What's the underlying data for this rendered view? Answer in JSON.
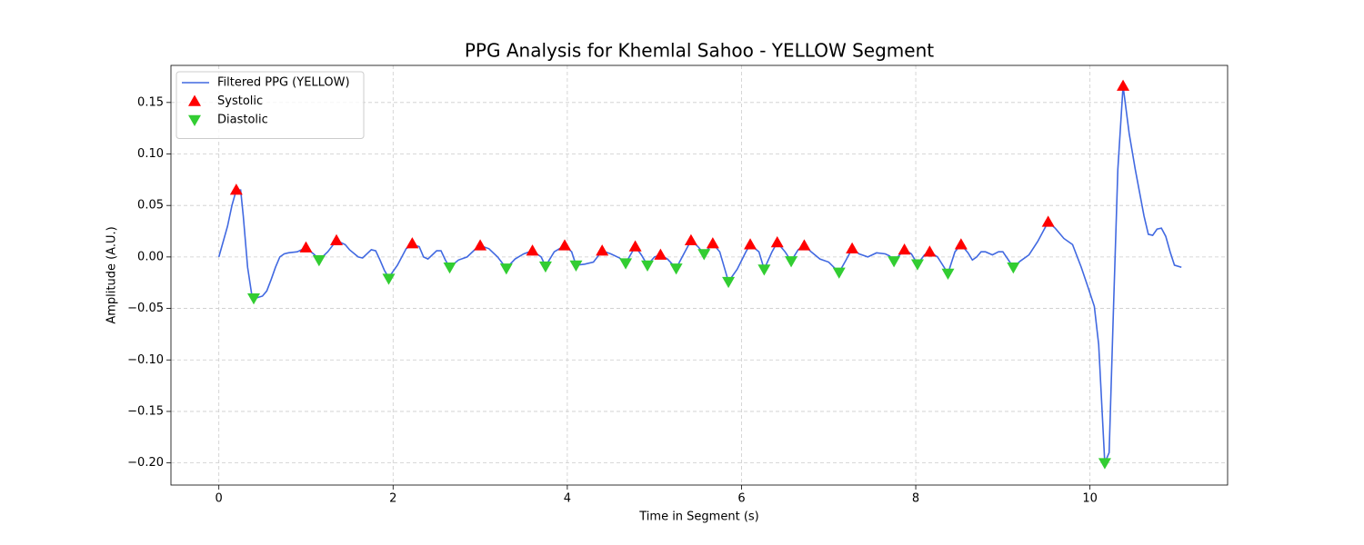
{
  "chart_data": {
    "type": "line",
    "title": "PPG Analysis for Khemlal Sahoo - YELLOW Segment",
    "x_label": "Time in Segment (s)",
    "y_label": "Amplitude (A.U.)",
    "xlim": [
      -0.55,
      11.58
    ],
    "ylim": [
      -0.2215,
      0.186
    ],
    "xticks": [
      0,
      2,
      4,
      6,
      8,
      10
    ],
    "yticks": [
      {
        "value": -0.2,
        "label": "−0.20"
      },
      {
        "value": -0.15,
        "label": "−0.15"
      },
      {
        "value": -0.1,
        "label": "−0.10"
      },
      {
        "value": -0.05,
        "label": "−0.05"
      },
      {
        "value": 0,
        "label": "0.00"
      },
      {
        "value": 0.05,
        "label": "0.05"
      },
      {
        "value": 0.1,
        "label": "0.10"
      },
      0.15
    ],
    "grid": true,
    "legend": "upper left",
    "series": [
      {
        "name": "Filtered PPG (YELLOW)",
        "color": "#4169e1",
        "marker": "line",
        "x": [
          0,
          0.1,
          0.15,
          0.2,
          0.25,
          0.28,
          0.3,
          0.33,
          0.38,
          0.42,
          0.5,
          0.55,
          0.6,
          0.65,
          0.7,
          0.75,
          0.8,
          0.9,
          1.0,
          1.1,
          1.15,
          1.25,
          1.35,
          1.45,
          1.5,
          1.6,
          1.65,
          1.7,
          1.75,
          1.8,
          1.85,
          1.9,
          1.95,
          2.05,
          2.15,
          2.22,
          2.3,
          2.35,
          2.4,
          2.45,
          2.5,
          2.55,
          2.6,
          2.65,
          2.75,
          2.85,
          2.95,
          3.0,
          3.1,
          3.2,
          3.3,
          3.4,
          3.5,
          3.6,
          3.7,
          3.75,
          3.85,
          3.97,
          4.05,
          4.1,
          4.2,
          4.3,
          4.4,
          4.5,
          4.6,
          4.67,
          4.78,
          4.85,
          4.92,
          5.0,
          5.07,
          5.15,
          5.25,
          5.35,
          5.42,
          5.5,
          5.57,
          5.67,
          5.75,
          5.85,
          5.95,
          6.05,
          6.1,
          6.2,
          6.26,
          6.35,
          6.41,
          6.5,
          6.57,
          6.65,
          6.72,
          6.8,
          6.9,
          7.0,
          7.12,
          7.2,
          7.27,
          7.35,
          7.45,
          7.55,
          7.65,
          7.7,
          7.75,
          7.87,
          7.95,
          8.02,
          8.1,
          8.16,
          8.25,
          8.37,
          8.45,
          8.52,
          8.6,
          8.65,
          8.7,
          8.75,
          8.8,
          8.88,
          8.95,
          9.0,
          9.12,
          9.2,
          9.3,
          9.4,
          9.52,
          9.6,
          9.7,
          9.8,
          9.9,
          9.98,
          10.05,
          10.1,
          10.17,
          10.22,
          10.27,
          10.32,
          10.38,
          10.45,
          10.52,
          10.62,
          10.67,
          10.72,
          10.77,
          10.82,
          10.87,
          10.92,
          10.97,
          11.05
        ],
        "values": [
          0,
          0.03,
          0.05,
          0.065,
          0.065,
          0.04,
          0.02,
          -0.01,
          -0.038,
          -0.04,
          -0.038,
          -0.033,
          -0.022,
          -0.01,
          0,
          0.003,
          0.004,
          0.005,
          0.009,
          0.002,
          -0.003,
          0.005,
          0.016,
          0.012,
          0.007,
          0,
          -0.001,
          0.003,
          0.007,
          0.006,
          -0.003,
          -0.013,
          -0.02,
          -0.008,
          0.008,
          0.012,
          0.01,
          0,
          -0.002,
          0.002,
          0.006,
          0.006,
          -0.003,
          -0.01,
          -0.003,
          0,
          0.008,
          0.011,
          0.008,
          0,
          -0.011,
          -0.002,
          0.003,
          0.006,
          0,
          -0.009,
          0.005,
          0.011,
          0.005,
          -0.008,
          -0.007,
          -0.005,
          0.006,
          0.003,
          -0.001,
          -0.006,
          0.01,
          0.002,
          -0.008,
          0,
          0.002,
          -0.002,
          -0.011,
          0.005,
          0.016,
          0.01,
          0.003,
          0.013,
          0.005,
          -0.024,
          -0.012,
          0.005,
          0.012,
          0.005,
          -0.012,
          0.005,
          0.014,
          0.005,
          -0.004,
          0.007,
          0.011,
          0.005,
          -0.002,
          -0.005,
          -0.015,
          -0.003,
          0.008,
          0.003,
          0,
          0.004,
          0.003,
          0.001,
          -0.004,
          0.007,
          0.003,
          -0.007,
          0.002,
          0.005,
          0,
          -0.016,
          0.005,
          0.012,
          0.004,
          -0.003,
          0,
          0.005,
          0.005,
          0.002,
          0.005,
          0.005,
          -0.01,
          -0.004,
          0.002,
          0.015,
          0.034,
          0.028,
          0.018,
          0.012,
          -0.01,
          -0.03,
          -0.048,
          -0.085,
          -0.2,
          -0.19,
          -0.05,
          0.085,
          0.166,
          0.12,
          0.085,
          0.04,
          0.022,
          0.021,
          0.027,
          0.028,
          0.02,
          0.005,
          -0.008,
          -0.01
        ]
      },
      {
        "name": "Systolic",
        "color": "#ff0000",
        "marker": "triangle-up",
        "x": [
          0.2,
          1.0,
          1.35,
          2.22,
          3.0,
          3.6,
          3.97,
          4.4,
          4.78,
          5.07,
          5.42,
          5.67,
          6.1,
          6.41,
          6.72,
          7.27,
          7.87,
          8.16,
          8.52,
          9.52,
          10.38
        ],
        "values": [
          0.065,
          0.009,
          0.016,
          0.013,
          0.011,
          0.006,
          0.011,
          0.006,
          0.01,
          0.002,
          0.016,
          0.013,
          0.012,
          0.014,
          0.011,
          0.008,
          0.007,
          0.005,
          0.012,
          0.034,
          0.166
        ]
      },
      {
        "name": "Diastolic",
        "color": "#32cd32",
        "marker": "triangle-down",
        "x": [
          0.4,
          1.15,
          1.95,
          2.65,
          3.3,
          3.75,
          4.1,
          4.67,
          4.92,
          5.25,
          5.57,
          5.85,
          6.26,
          6.57,
          7.12,
          7.75,
          8.02,
          8.37,
          9.12,
          10.17
        ],
        "values": [
          -0.04,
          -0.003,
          -0.021,
          -0.01,
          -0.011,
          -0.009,
          -0.008,
          -0.006,
          -0.008,
          -0.011,
          0.003,
          -0.024,
          -0.012,
          -0.004,
          -0.015,
          -0.004,
          -0.007,
          -0.016,
          -0.01,
          -0.2
        ]
      }
    ]
  }
}
